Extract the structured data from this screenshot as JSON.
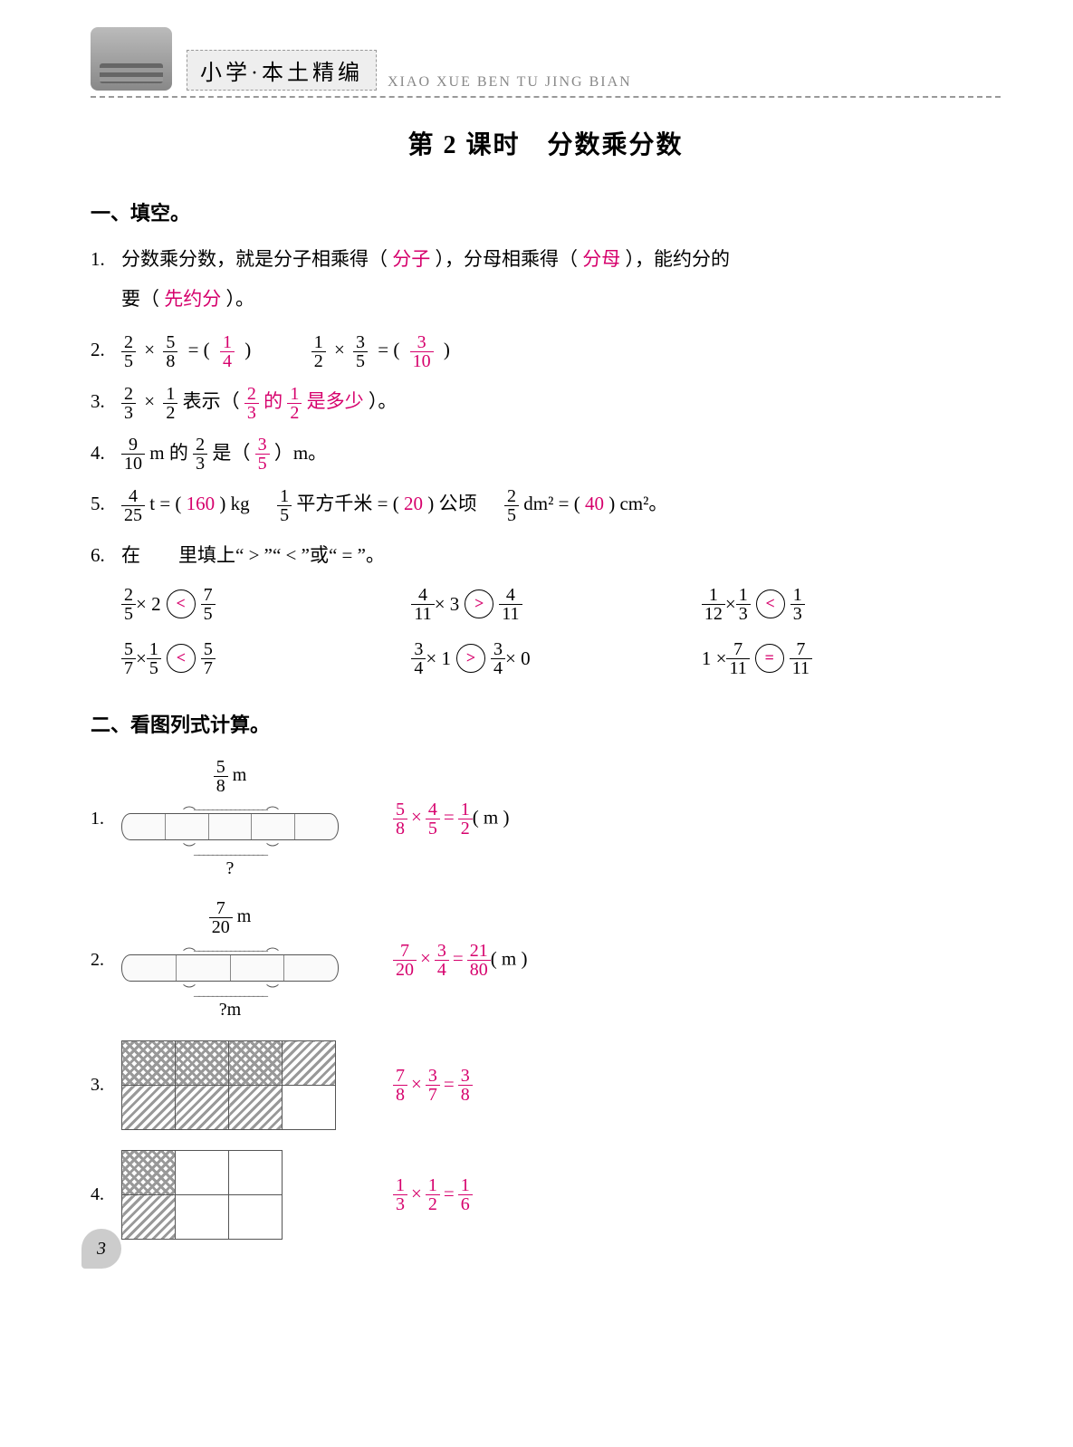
{
  "header": {
    "title": "小学·本土精编",
    "pinyin": "XIAO XUE BEN TU JING BIAN"
  },
  "lesson_title": "第 2 课时　分数乘分数",
  "section1": {
    "head": "一、填空。",
    "q1": {
      "num": "1.",
      "pre": "分数乘分数，就是分子相乘得（",
      "a1": "分子",
      "mid": "），分母相乘得（",
      "a2": "分母",
      "mid2": "），能约分的",
      "line2_pre": "要（",
      "a3": "先约分",
      "end": "）。"
    },
    "q2": {
      "num": "2.",
      "f1n": "2",
      "f1d": "5",
      "f2n": "5",
      "f2d": "8",
      "eq": "= (",
      "a1n": "1",
      "a1d": "4",
      "close": ")",
      "f3n": "1",
      "f3d": "2",
      "f4n": "3",
      "f4d": "5",
      "a2n": "3",
      "a2d": "10"
    },
    "q3": {
      "num": "3.",
      "f1n": "2",
      "f1d": "3",
      "f2n": "1",
      "f2d": "2",
      "pre": "表示（",
      "a_pre": "",
      "af1n": "2",
      "af1d": "3",
      "amid": "的",
      "af2n": "1",
      "af2d": "2",
      "asuf": "是多少",
      "end": "）。"
    },
    "q4": {
      "num": "4.",
      "f1n": "9",
      "f1d": "10",
      "mid1": "m 的",
      "f2n": "2",
      "f2d": "3",
      "mid2": "是（",
      "an": "3",
      "ad": "5",
      "end": "）m。"
    },
    "q5": {
      "num": "5.",
      "f1n": "4",
      "f1d": "25",
      "u1": "t = (",
      "a1": "160",
      "u1e": ") kg",
      "f2n": "1",
      "f2d": "5",
      "u2": "平方千米 = (",
      "a2": "20",
      "u2e": ") 公顷",
      "f3n": "2",
      "f3d": "5",
      "u3": "dm² = (",
      "a3": "40",
      "u3e": ") cm²。"
    },
    "q6": {
      "num": "6.",
      "text": "在　　里填上“ > ”“ < ”或“ = ”。",
      "items": [
        {
          "l": {
            "n": "2",
            "d": "5",
            "op": "× 2"
          },
          "sym": "<",
          "r": {
            "n": "7",
            "d": "5"
          }
        },
        {
          "l": {
            "n": "4",
            "d": "11",
            "op": "× 3"
          },
          "sym": ">",
          "r": {
            "n": "4",
            "d": "11"
          }
        },
        {
          "l": {
            "n": "1",
            "d": "12",
            "op": "×",
            "n2": "1",
            "d2": "3"
          },
          "sym": "<",
          "r": {
            "n": "1",
            "d": "3"
          }
        },
        {
          "l": {
            "n": "5",
            "d": "7",
            "op": "×",
            "n2": "1",
            "d2": "5"
          },
          "sym": "<",
          "r": {
            "n": "5",
            "d": "7"
          }
        },
        {
          "l": {
            "n": "3",
            "d": "4",
            "op": "× 1"
          },
          "sym": ">",
          "r": {
            "n": "3",
            "d": "4",
            "suf": "× 0"
          }
        },
        {
          "l": {
            "pre": "1 ×",
            "n": "7",
            "d": "11"
          },
          "sym": "=",
          "r": {
            "n": "7",
            "d": "11"
          }
        }
      ]
    }
  },
  "section2": {
    "head": "二、看图列式计算。",
    "items": [
      {
        "num": "1.",
        "top_n": "5",
        "top_d": "8",
        "top_u": "m",
        "ticks": 5,
        "bot": "?",
        "sol": {
          "an": "5",
          "ad": "8",
          "bn": "4",
          "bd": "5",
          "rn": "1",
          "rd": "2",
          "u": "( m )"
        }
      },
      {
        "num": "2.",
        "top_n": "7",
        "top_d": "20",
        "top_u": "m",
        "ticks": 4,
        "bot": "?m",
        "sol": {
          "an": "7",
          "ad": "20",
          "bn": "3",
          "bd": "4",
          "rn": "21",
          "rd": "80",
          "u": "( m )"
        }
      },
      {
        "num": "3.",
        "grid": {
          "rows": 2,
          "cols": 4,
          "pattern": "g3"
        },
        "sol": {
          "an": "7",
          "ad": "8",
          "bn": "3",
          "bd": "7",
          "rn": "3",
          "rd": "8",
          "u": ""
        }
      },
      {
        "num": "4.",
        "grid": {
          "rows": 2,
          "cols": 3,
          "pattern": "g4"
        },
        "sol": {
          "an": "1",
          "ad": "3",
          "bn": "1",
          "bd": "2",
          "rn": "1",
          "rd": "6",
          "u": ""
        }
      }
    ]
  },
  "page_number": "3",
  "colors": {
    "answer": "#d6006c",
    "text": "#000000",
    "muted": "#888888",
    "background": "#ffffff"
  }
}
